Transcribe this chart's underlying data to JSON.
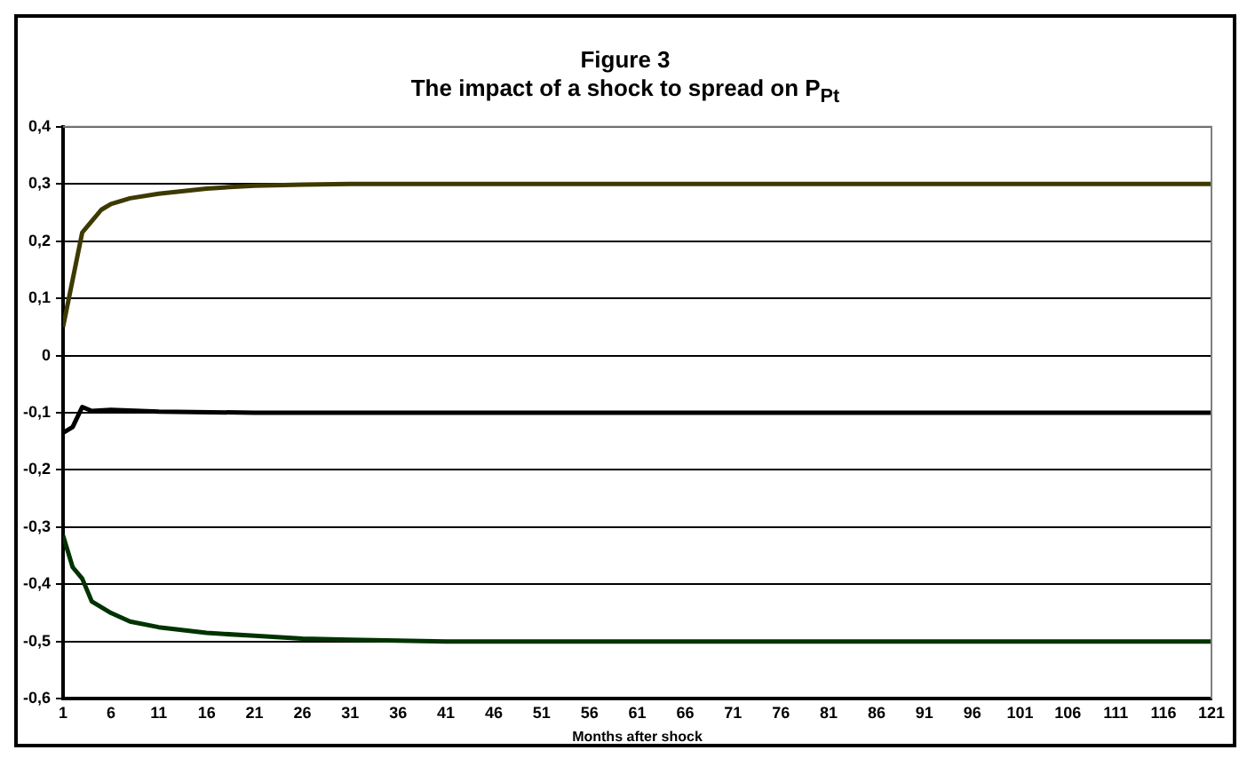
{
  "chart_data": {
    "type": "line",
    "title": "Figure 3",
    "subtitle": "The impact of a shock to spread on P$_{Pt}$",
    "xlabel": "Months after shock",
    "series": [
      {
        "color": "#3d3a00",
        "x": [
          1,
          3,
          4,
          5,
          6,
          8,
          11,
          16,
          21,
          26,
          31,
          41,
          121
        ],
        "values": [
          0.05,
          0.215,
          0.235,
          0.255,
          0.265,
          0.275,
          0.283,
          0.292,
          0.297,
          0.299,
          0.3,
          0.3,
          0.3
        ]
      },
      {
        "color": "#000000",
        "x": [
          1,
          2,
          3,
          4,
          6,
          11,
          21,
          121
        ],
        "values": [
          -0.135,
          -0.125,
          -0.09,
          -0.097,
          -0.095,
          -0.098,
          -0.1,
          -0.1
        ]
      },
      {
        "color": "#003300",
        "x": [
          1,
          2,
          3,
          4,
          6,
          8,
          11,
          16,
          21,
          26,
          31,
          41,
          121
        ],
        "values": [
          -0.315,
          -0.37,
          -0.39,
          -0.43,
          -0.45,
          -0.465,
          -0.475,
          -0.485,
          -0.49,
          -0.495,
          -0.497,
          -0.5,
          -0.5
        ]
      }
    ],
    "xlim": [
      1,
      121
    ],
    "xticks": [
      1,
      6,
      11,
      16,
      21,
      26,
      31,
      36,
      41,
      46,
      51,
      56,
      61,
      66,
      71,
      76,
      81,
      86,
      91,
      96,
      101,
      106,
      111,
      116,
      121
    ],
    "ylim": [
      -0.6,
      0.4
    ],
    "yticks": [
      {
        "value": -0.6,
        "label": "-0,6"
      },
      {
        "value": -0.5,
        "label": "-0,5"
      },
      {
        "value": -0.4,
        "label": "-0,4"
      },
      {
        "value": -0.3,
        "label": "-0,3"
      },
      {
        "value": -0.2,
        "label": "-0,2"
      },
      {
        "value": -0.1,
        "label": "-0,1"
      },
      0,
      {
        "value": 0.1,
        "label": "0,1"
      },
      {
        "value": 0.2,
        "label": "0,2"
      },
      {
        "value": 0.3,
        "label": "0,3"
      },
      {
        "value": 0.4,
        "label": "0,4"
      }
    ],
    "grid": "y",
    "legend": false,
    "marker": "none",
    "line_style": "solid"
  }
}
